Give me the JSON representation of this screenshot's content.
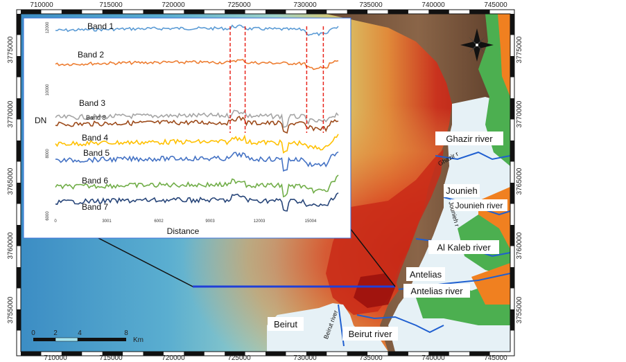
{
  "map": {
    "x_ticks": [
      "710000",
      "715000",
      "720000",
      "725000",
      "730000",
      "735000",
      "740000",
      "745000"
    ],
    "y_ticks": [
      "3775000",
      "3770000",
      "3765000",
      "3760000",
      "3755000"
    ],
    "places": {
      "ghazir_river": "Ghazir river",
      "jounieh": "Jounieh",
      "jounieh_river": "Jounieh river",
      "al_kaleb_river": "Al Kaleb river",
      "antelias": "Antelias",
      "antelias_river": "Antelias river",
      "beirut": "Beirut",
      "beirut_river": "Beirut river",
      "beirut_river_vertical": "Beirut river",
      "ghazir_small": "Ghazir r",
      "jounieh_small": "Jounieh r"
    },
    "scalebar": {
      "ticks": [
        "0",
        "2",
        "4",
        "8"
      ],
      "unit": "Km"
    }
  },
  "chart_data": {
    "type": "line",
    "xlabel": "Distance",
    "ylabel": "DN",
    "x_ticks": [
      "0",
      "3001",
      "6002",
      "9003",
      "12003",
      "15004"
    ],
    "y_ticks": [
      "6000",
      "8000",
      "10000",
      "12000"
    ],
    "x_range": [
      0,
      17000
    ],
    "series": [
      {
        "name": "Band 1",
        "color": "#5b9bd5"
      },
      {
        "name": "Band 2",
        "color": "#ed7d31"
      },
      {
        "name": "Band 3",
        "color": "#a5a5a5"
      },
      {
        "name": "Band 8",
        "color": "#9c4a1a"
      },
      {
        "name": "Band 4",
        "color": "#ffc000"
      },
      {
        "name": "Band 5",
        "color": "#4472c4"
      },
      {
        "name": "Band 6",
        "color": "#70ad47"
      },
      {
        "name": "Band 7",
        "color": "#264478"
      }
    ],
    "dashed_marker_distances": [
      10500,
      11400,
      15100,
      16100
    ]
  }
}
